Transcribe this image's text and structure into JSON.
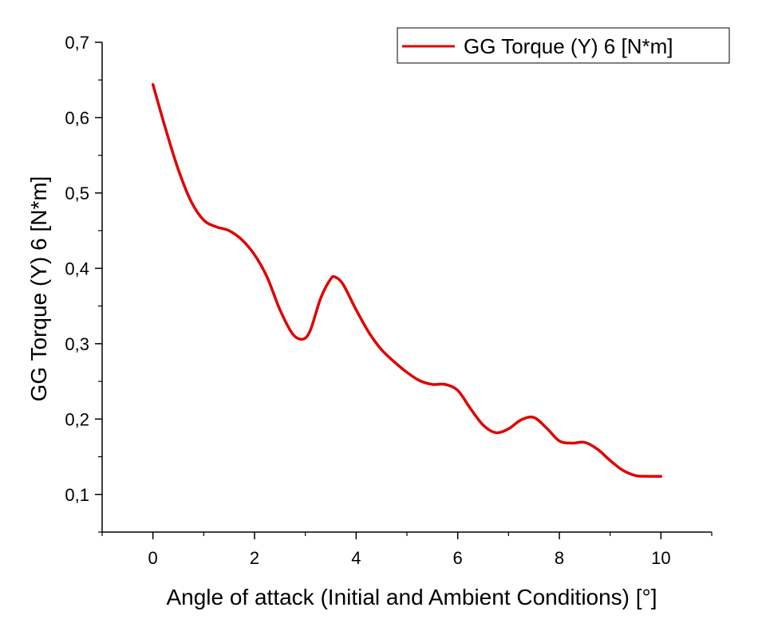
{
  "chart_data": {
    "type": "line",
    "title": "",
    "xlabel": "Angle of attack (Initial and Ambient Conditions) [°]",
    "ylabel": "GG Torque (Y) 6 [N*m]",
    "xlim": [
      -1,
      11
    ],
    "ylim": [
      0.05,
      0.7
    ],
    "xticks": [
      0,
      2,
      4,
      6,
      8,
      10
    ],
    "xtick_labels": [
      "0",
      "2",
      "4",
      "6",
      "8",
      "10"
    ],
    "yticks": [
      0.1,
      0.2,
      0.3,
      0.4,
      0.5,
      0.6,
      0.7
    ],
    "ytick_labels": [
      "0,1",
      "0,2",
      "0,3",
      "0,4",
      "0,5",
      "0,6",
      "0,7"
    ],
    "grid": false,
    "legend_position": "top-right",
    "series": [
      {
        "name": "GG Torque (Y) 6 [N*m]",
        "color": "#e00000",
        "x": [
          0,
          0.25,
          0.5,
          0.75,
          1.0,
          1.25,
          1.5,
          1.75,
          2.0,
          2.25,
          2.5,
          2.75,
          2.95,
          3.1,
          3.3,
          3.5,
          3.6,
          3.75,
          4.0,
          4.25,
          4.5,
          4.75,
          5.0,
          5.25,
          5.5,
          5.75,
          6.0,
          6.25,
          6.5,
          6.75,
          7.0,
          7.25,
          7.5,
          7.75,
          8.0,
          8.25,
          8.5,
          8.75,
          9.0,
          9.25,
          9.5,
          9.75,
          10.0
        ],
        "y": [
          0.644,
          0.585,
          0.531,
          0.489,
          0.464,
          0.455,
          0.45,
          0.438,
          0.418,
          0.388,
          0.345,
          0.313,
          0.306,
          0.318,
          0.36,
          0.386,
          0.388,
          0.378,
          0.345,
          0.315,
          0.292,
          0.276,
          0.262,
          0.251,
          0.246,
          0.246,
          0.238,
          0.214,
          0.192,
          0.182,
          0.187,
          0.199,
          0.202,
          0.188,
          0.171,
          0.168,
          0.169,
          0.16,
          0.145,
          0.132,
          0.125,
          0.124,
          0.124
        ]
      }
    ]
  }
}
